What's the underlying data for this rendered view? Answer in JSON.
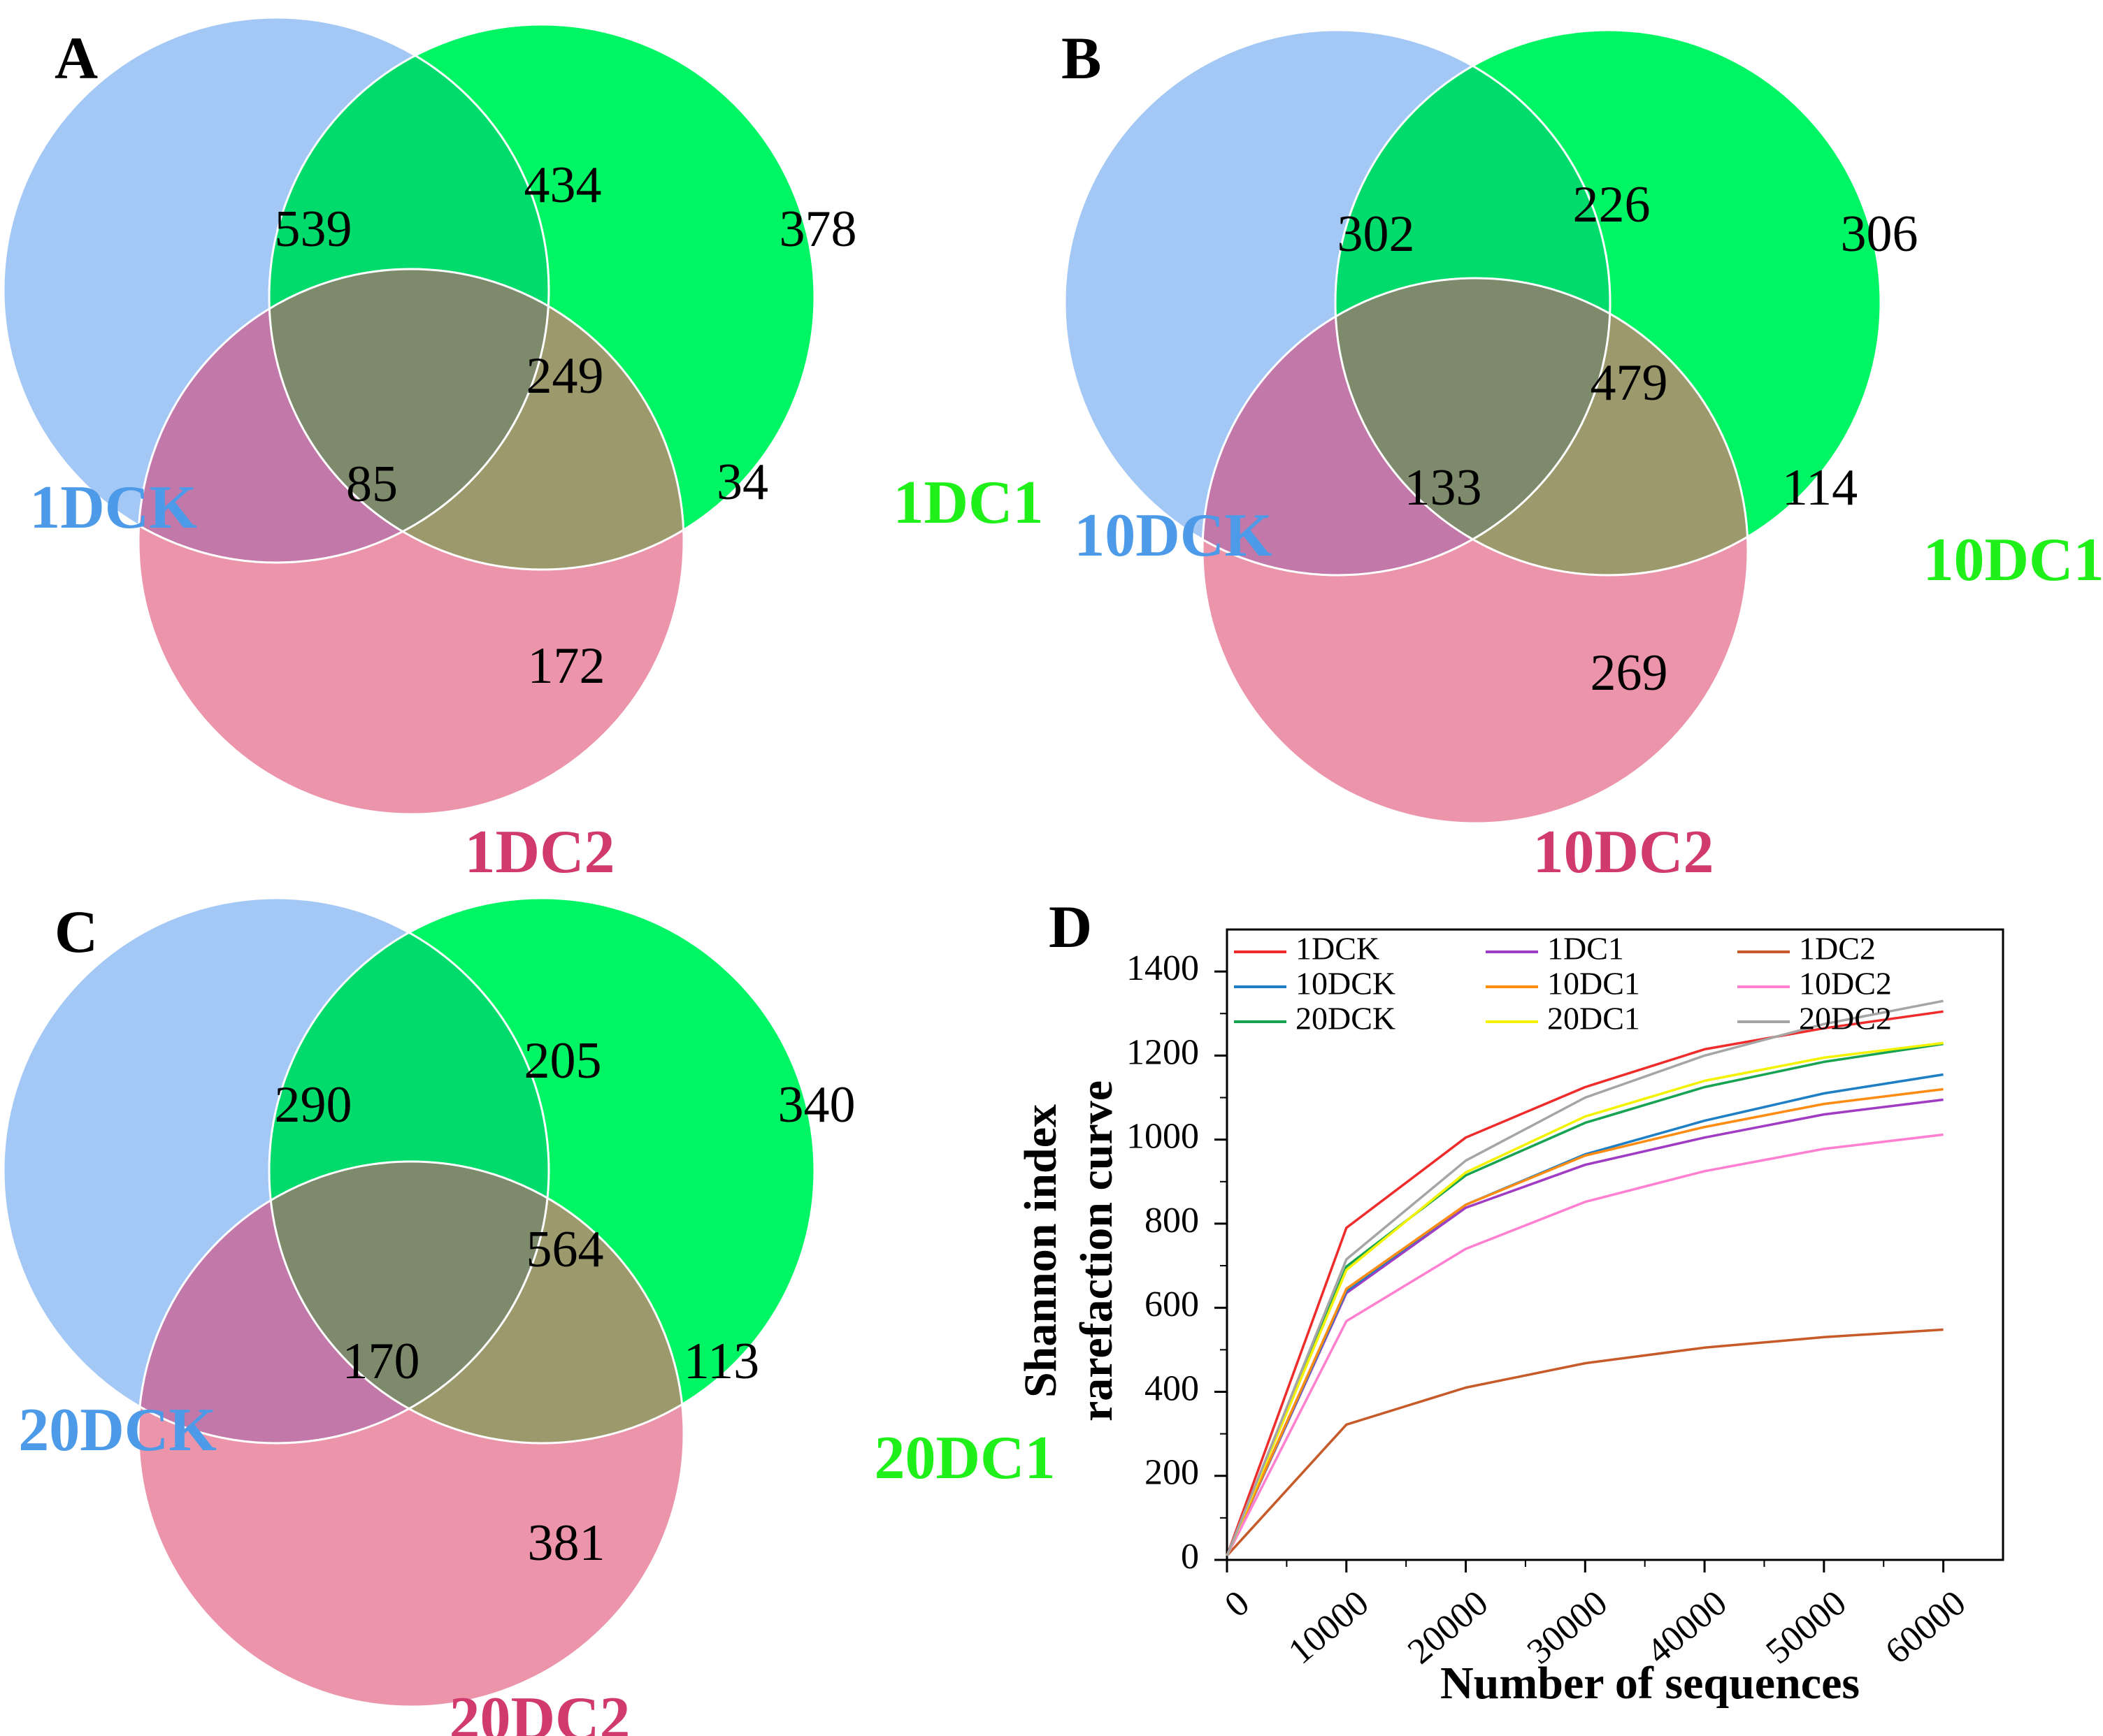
{
  "colors": {
    "set_a": "#a4c8f5",
    "set_b": "#00f565",
    "set_c": "#eb94aa",
    "ab": "#00db6c",
    "ac": "#c279a9",
    "bc": "#9c996c",
    "abc": "#7e8a6c",
    "label_a": "#4d9be8",
    "label_b": "#1ff01a",
    "label_c": "#d13a6c"
  },
  "venns": [
    {
      "panel": "A",
      "labels": {
        "a": "1DCK",
        "b": "1DC1",
        "c": "1DC2"
      },
      "counts": {
        "a_only": "539",
        "ab": "434",
        "b_only": "378",
        "abc": "249",
        "ac": "85",
        "bc": "34",
        "c_only": "172"
      }
    },
    {
      "panel": "B",
      "labels": {
        "a": "10DCK",
        "b": "10DC1",
        "c": "10DC2"
      },
      "counts": {
        "a_only": "302",
        "ab": "226",
        "b_only": "306",
        "abc": "479",
        "ac": "133",
        "bc": "114",
        "c_only": "269"
      }
    },
    {
      "panel": "C",
      "labels": {
        "a": "20DCK",
        "b": "20DC1",
        "c": "20DC2"
      },
      "counts": {
        "a_only": "290",
        "ab": "205",
        "b_only": "340",
        "abc": "564",
        "ac": "170",
        "bc": "113",
        "c_only": "381"
      }
    }
  ],
  "chart_data": {
    "panel": "D",
    "type": "line",
    "xlabel": "Number of sequences",
    "ylabel_lines": [
      "Shannon index",
      "rarefaction curve"
    ],
    "xlim": [
      0,
      65000
    ],
    "ylim": [
      0,
      1500
    ],
    "xticks": [
      0,
      10000,
      20000,
      30000,
      40000,
      50000,
      60000
    ],
    "yticks": [
      0,
      200,
      400,
      600,
      800,
      1000,
      1200,
      1400
    ],
    "legend_position": "top-left",
    "x": [
      0,
      10000,
      20000,
      30000,
      40000,
      50000,
      60000
    ],
    "series": [
      {
        "name": "1DCK",
        "color": "#ef2b2b",
        "values": [
          10,
          790,
          1005,
          1125,
          1215,
          1265,
          1305
        ]
      },
      {
        "name": "1DC1",
        "color": "#a03cc4",
        "values": [
          10,
          635,
          838,
          940,
          1005,
          1060,
          1095
        ]
      },
      {
        "name": "1DC2",
        "color": "#c65a28",
        "values": [
          10,
          322,
          410,
          468,
          505,
          530,
          548
        ]
      },
      {
        "name": "10DCK",
        "color": "#1f7fc4",
        "values": [
          10,
          640,
          845,
          965,
          1045,
          1110,
          1155
        ]
      },
      {
        "name": "10DC1",
        "color": "#ff8c12",
        "values": [
          10,
          645,
          845,
          962,
          1030,
          1085,
          1120
        ]
      },
      {
        "name": "10DC2",
        "color": "#ff7fd0",
        "values": [
          10,
          568,
          740,
          852,
          925,
          978,
          1012
        ]
      },
      {
        "name": "20DCK",
        "color": "#17a452",
        "values": [
          10,
          698,
          915,
          1040,
          1125,
          1185,
          1228
        ]
      },
      {
        "name": "20DC1",
        "color": "#f3f300",
        "values": [
          10,
          690,
          922,
          1055,
          1140,
          1195,
          1230
        ]
      },
      {
        "name": "20DC2",
        "color": "#a5a5a5",
        "values": [
          10,
          715,
          950,
          1100,
          1200,
          1275,
          1330
        ]
      }
    ]
  }
}
